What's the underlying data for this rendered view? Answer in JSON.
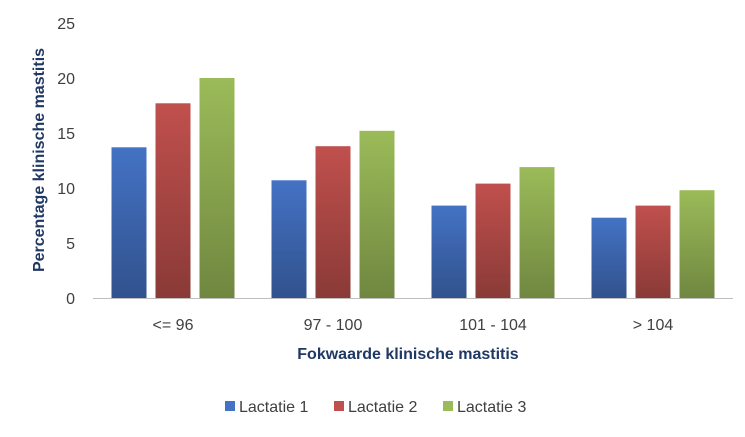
{
  "chart_data": {
    "type": "bar",
    "categories": [
      "<= 96",
      "97 - 100",
      "101 - 104",
      "> 104"
    ],
    "series": [
      {
        "name": "Lactatie 1",
        "values": [
          13.7,
          10.7,
          8.4,
          7.3
        ],
        "color": "#4472c4"
      },
      {
        "name": "Lactatie 2",
        "values": [
          17.7,
          13.8,
          10.4,
          8.4
        ],
        "color": "#c0504d"
      },
      {
        "name": "Lactatie 3",
        "values": [
          20.0,
          15.2,
          11.9,
          9.8
        ],
        "color": "#9bbb59"
      }
    ],
    "title": "",
    "xlabel": "Fokwaarde klinische mastitis",
    "ylabel": "Percentage klinische mastitis",
    "ylim": [
      0,
      25
    ],
    "yticks": [
      "0",
      "5",
      "10",
      "15",
      "20",
      "25"
    ],
    "grid": false,
    "legend_position": "bottom"
  }
}
